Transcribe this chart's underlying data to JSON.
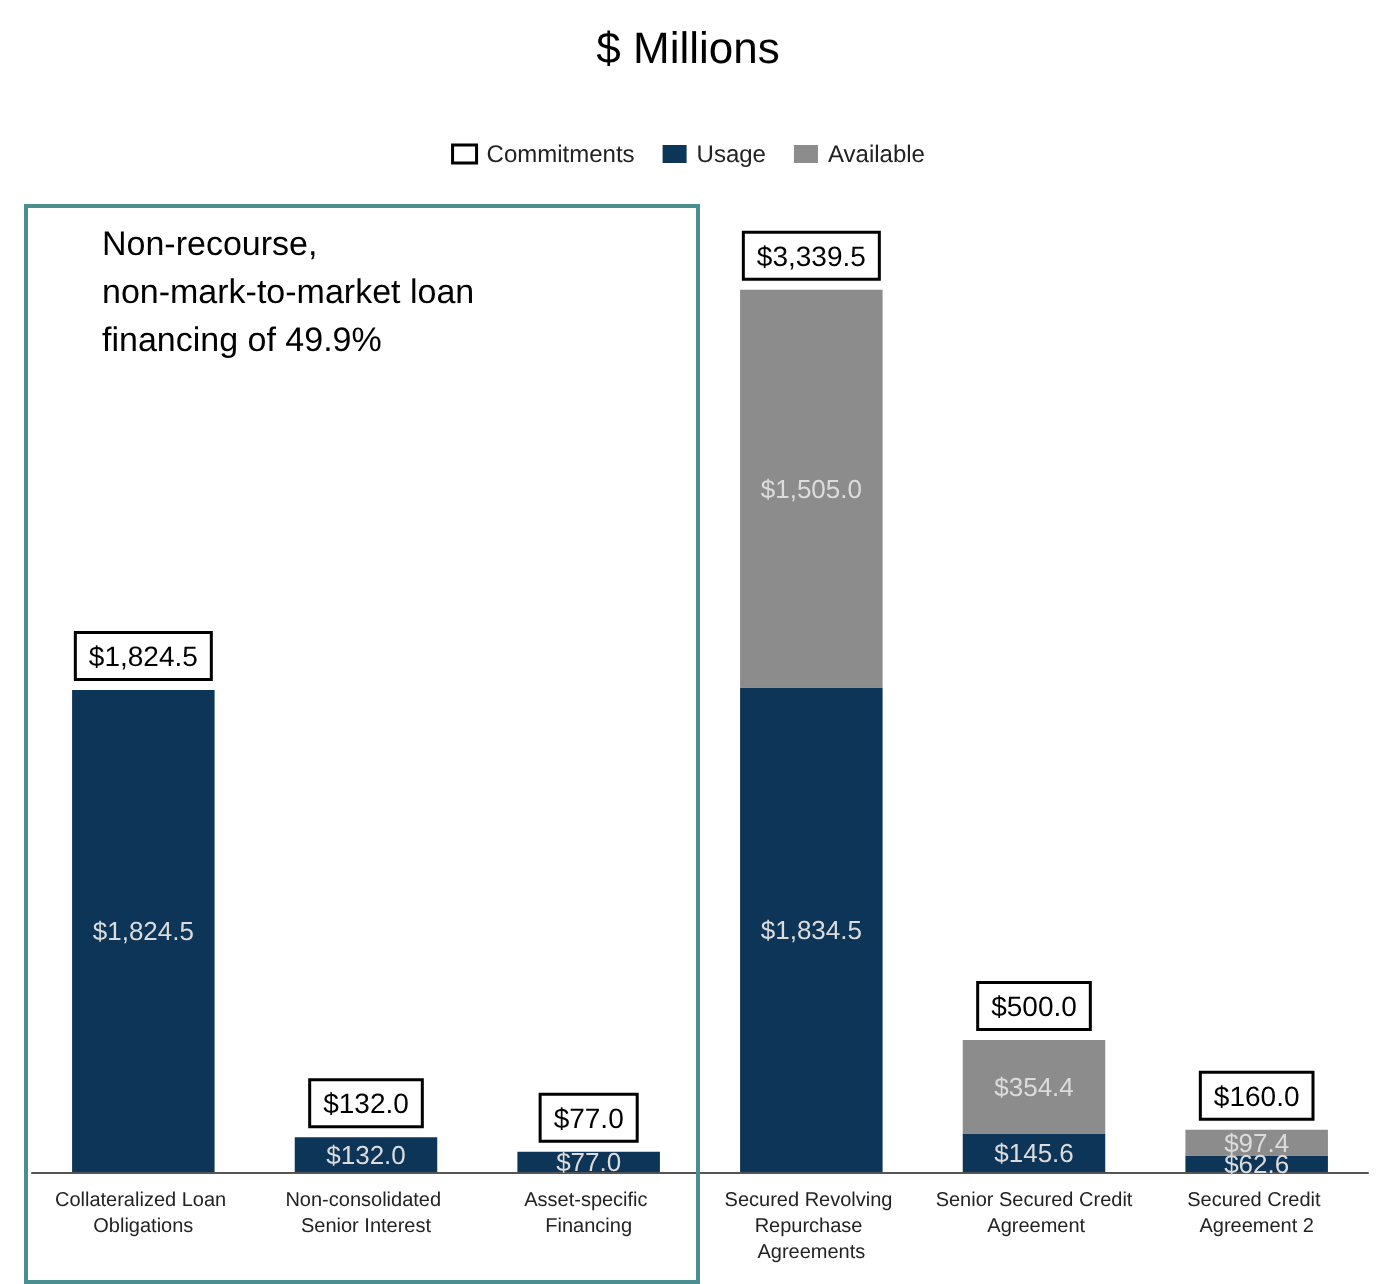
{
  "chart_data": {
    "type": "bar",
    "title": "$ Millions",
    "categories": [
      "Collateralized Loan Obligations",
      "Non-consolidated Senior Interest",
      "Asset-specific Financing",
      "Secured Revolving Repurchase Agreements",
      "Senior Secured Credit Agreement",
      "Secured Credit Agreement 2"
    ],
    "stacked": true,
    "series": [
      {
        "name": "Commitments",
        "color": "#ffffff",
        "values": [
          null,
          null,
          null,
          null,
          null,
          null
        ]
      },
      {
        "name": "Usage",
        "color": "#0d3557",
        "values": [
          1824.5,
          132.0,
          77.0,
          1834.5,
          145.6,
          62.6
        ],
        "value_labels": [
          "$1,824.5",
          "$132.0",
          "$77.0",
          "$1,834.5",
          "$145.6",
          "$62.6"
        ]
      },
      {
        "name": "Available",
        "color": "#8c8c8c",
        "values": [
          null,
          null,
          null,
          1505.0,
          354.4,
          97.4
        ],
        "value_labels": [
          null,
          null,
          null,
          "$1,505.0",
          "$354.4",
          "$97.4"
        ]
      }
    ],
    "totals": [
      "$1,824.5",
      "$132.0",
      "$77.0",
      "$3,339.5",
      "$500.0",
      "$160.0"
    ],
    "annotations": [
      "Non-recourse, non-mark-to-market loan financing of 49.9%"
    ],
    "tick_labels": "x",
    "legend": "top",
    "grid": false
  }
}
